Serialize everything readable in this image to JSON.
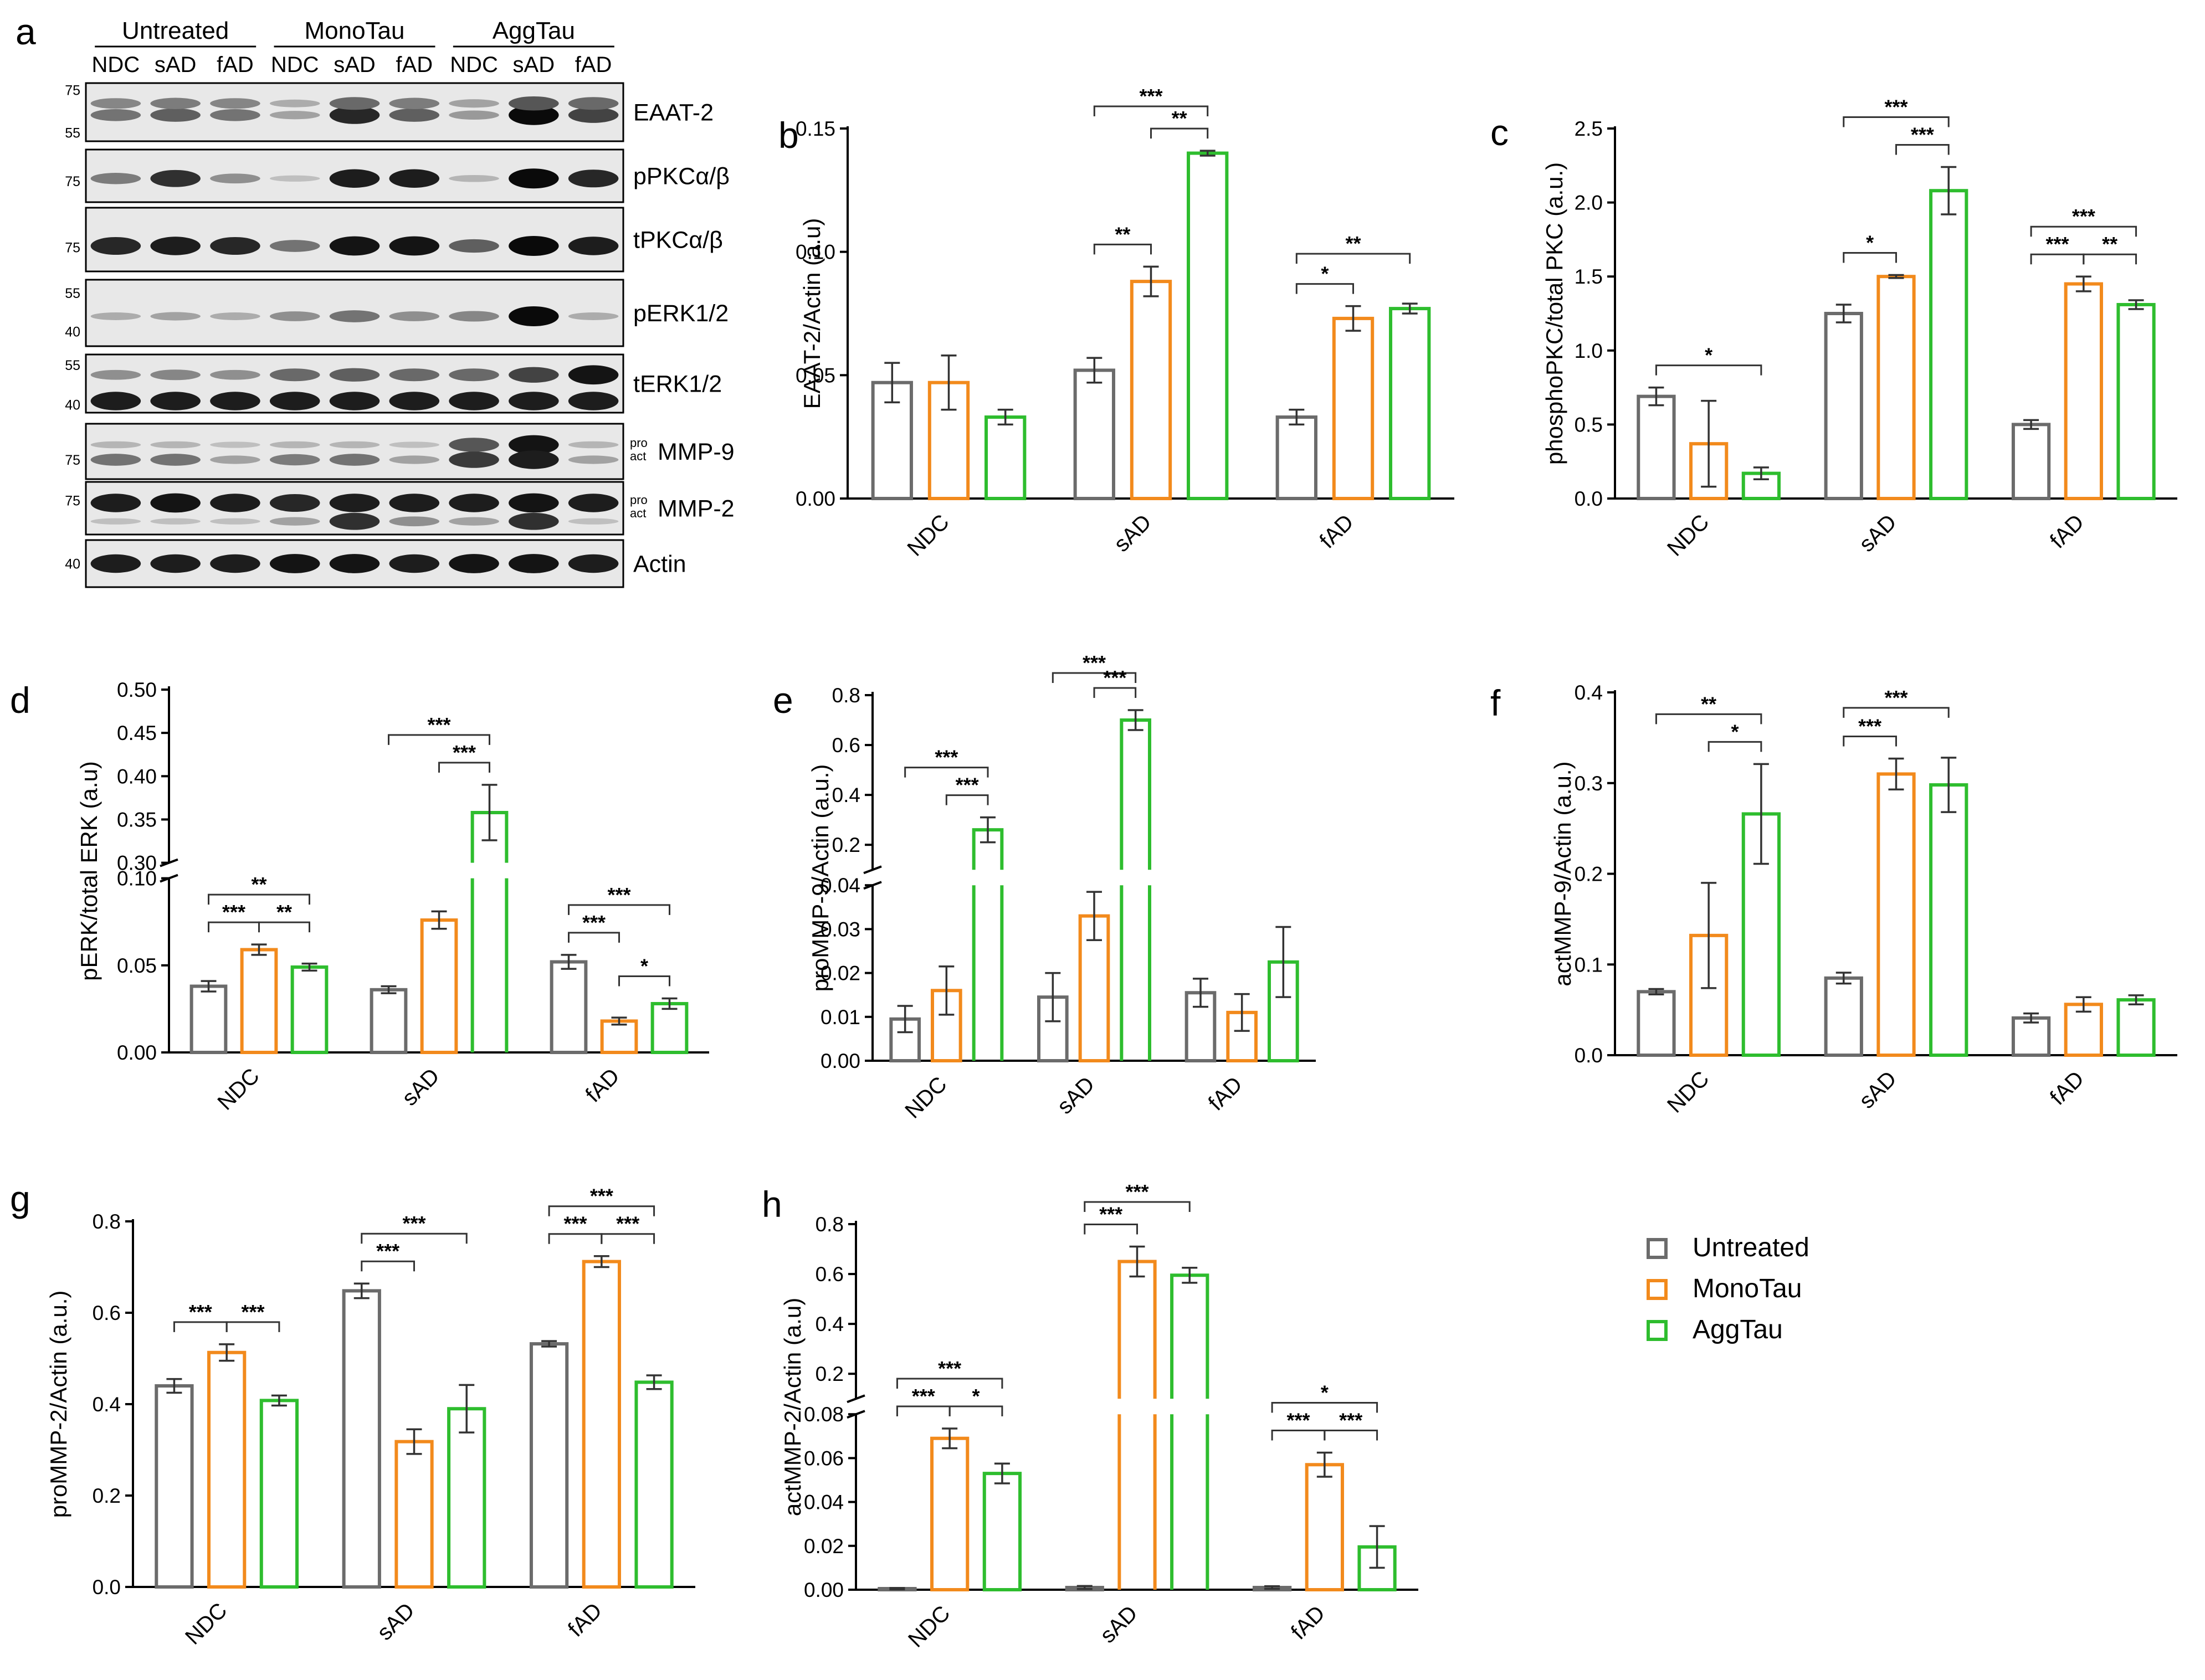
{
  "figure": {
    "groups": [
      "Untreated",
      "MonoTau",
      "AggTau"
    ],
    "group_colors": [
      "#6b6b6b",
      "#f28a1c",
      "#2ebd2e"
    ],
    "legend": [
      "Untreated",
      "MonoTau",
      "AggTau"
    ]
  },
  "blot": {
    "panel_label": "a",
    "treatment_headers": [
      "Untreated",
      "MonoTau",
      "AggTau"
    ],
    "lane_labels": [
      "NDC",
      "sAD",
      "fAD",
      "NDC",
      "sAD",
      "fAD",
      "NDC",
      "sAD",
      "fAD"
    ],
    "rows": [
      {
        "name": "EAAT-2",
        "markers": [
          "75",
          "55"
        ],
        "tags": []
      },
      {
        "name": "pPKCα/β",
        "markers": [
          "75"
        ],
        "tags": []
      },
      {
        "name": "tPKCα/β",
        "markers": [
          "75"
        ],
        "tags": []
      },
      {
        "name": "pERK1/2",
        "markers": [
          "55",
          "40"
        ],
        "tags": []
      },
      {
        "name": "tERK1/2",
        "markers": [
          "55",
          "40"
        ],
        "tags": []
      },
      {
        "name": "MMP-9",
        "markers": [
          "75"
        ],
        "tags": [
          "pro",
          "act"
        ]
      },
      {
        "name": "MMP-2",
        "markers": [
          "75"
        ],
        "tags": [
          "pro",
          "act"
        ]
      },
      {
        "name": "Actin",
        "markers": [
          "40"
        ],
        "tags": []
      }
    ]
  },
  "chart_data": [
    {
      "panel": "b",
      "type": "bar",
      "ylabel": "EAAT-2/Actin (a.u)",
      "categories": [
        "NDC",
        "sAD",
        "fAD"
      ],
      "ylim": [
        0,
        0.15
      ],
      "ticks": [
        "0.00",
        "0.05",
        "0.10",
        "0.15"
      ],
      "tick_values": [
        0,
        0.05,
        0.1,
        0.15
      ],
      "series": [
        {
          "name": "Untreated",
          "values": [
            0.047,
            0.052,
            0.033
          ],
          "errors": [
            0.008,
            0.005,
            0.003
          ]
        },
        {
          "name": "MonoTau",
          "values": [
            0.047,
            0.088,
            0.073
          ],
          "errors": [
            0.011,
            0.006,
            0.005
          ]
        },
        {
          "name": "AggTau",
          "values": [
            0.033,
            0.14,
            0.077
          ],
          "errors": [
            0.003,
            0.001,
            0.002
          ]
        }
      ],
      "significance": [
        {
          "cat": 1,
          "a": 0,
          "b": 2,
          "label": "***",
          "level": 2
        },
        {
          "cat": 1,
          "a": 0,
          "b": 1,
          "label": "**",
          "level": 1
        },
        {
          "cat": 1,
          "a": 1,
          "b": 2,
          "label": "**",
          "level": 1
        },
        {
          "cat": 2,
          "a": 0,
          "b": 2,
          "label": "**",
          "level": 2
        },
        {
          "cat": 2,
          "a": 0,
          "b": 1,
          "label": "*",
          "level": 1
        }
      ]
    },
    {
      "panel": "c",
      "type": "bar",
      "ylabel": "phosphoPKC/total PKC (a.u.)",
      "categories": [
        "NDC",
        "sAD",
        "fAD"
      ],
      "ylim": [
        0,
        2.5
      ],
      "ticks": [
        "0.0",
        "0.5",
        "1.0",
        "1.5",
        "2.0",
        "2.5"
      ],
      "tick_values": [
        0,
        0.5,
        1.0,
        1.5,
        2.0,
        2.5
      ],
      "series": [
        {
          "name": "Untreated",
          "values": [
            0.69,
            1.25,
            0.5
          ],
          "errors": [
            0.06,
            0.06,
            0.03
          ]
        },
        {
          "name": "MonoTau",
          "values": [
            0.37,
            1.5,
            1.45
          ],
          "errors": [
            0.29,
            0.01,
            0.05
          ]
        },
        {
          "name": "AggTau",
          "values": [
            0.17,
            2.08,
            1.31
          ],
          "errors": [
            0.04,
            0.16,
            0.03
          ]
        }
      ],
      "significance": [
        {
          "cat": 0,
          "a": 0,
          "b": 2,
          "label": "*",
          "level": 1
        },
        {
          "cat": 1,
          "a": 0,
          "b": 2,
          "label": "***",
          "level": 2
        },
        {
          "cat": 1,
          "a": 0,
          "b": 1,
          "label": "*",
          "level": 1
        },
        {
          "cat": 1,
          "a": 1,
          "b": 2,
          "label": "***",
          "level": 1
        },
        {
          "cat": 2,
          "a": 0,
          "b": 2,
          "label": "***",
          "level": 2
        },
        {
          "cat": 2,
          "a": 0,
          "b": 1,
          "label": "***",
          "level": 1
        },
        {
          "cat": 2,
          "a": 1,
          "b": 2,
          "label": "**",
          "level": 1
        }
      ]
    },
    {
      "panel": "d",
      "type": "bar",
      "ylabel": "pERK/total ERK (a.u)",
      "categories": [
        "NDC",
        "sAD",
        "fAD"
      ],
      "broken_axis": {
        "lower": [
          0,
          0.1
        ],
        "upper": [
          0.3,
          0.5
        ]
      },
      "ticks": [
        "0.00",
        "0.05",
        "0.10",
        "0.30",
        "0.35",
        "0.40",
        "0.45",
        "0.50"
      ],
      "tick_values": [
        0,
        0.05,
        0.1,
        0.3,
        0.35,
        0.4,
        0.45,
        0.5
      ],
      "series": [
        {
          "name": "Untreated",
          "values": [
            0.038,
            0.036,
            0.052
          ],
          "errors": [
            0.003,
            0.002,
            0.004
          ]
        },
        {
          "name": "MonoTau",
          "values": [
            0.059,
            0.076,
            0.018
          ],
          "errors": [
            0.003,
            0.005,
            0.002
          ]
        },
        {
          "name": "AggTau",
          "values": [
            0.049,
            0.358,
            0.028
          ],
          "errors": [
            0.002,
            0.032,
            0.003
          ]
        }
      ],
      "significance": [
        {
          "cat": 0,
          "a": 0,
          "b": 2,
          "label": "**",
          "level": 2
        },
        {
          "cat": 0,
          "a": 0,
          "b": 1,
          "label": "***",
          "level": 1
        },
        {
          "cat": 0,
          "a": 1,
          "b": 2,
          "label": "**",
          "level": 1
        },
        {
          "cat": 1,
          "a": 0,
          "b": 2,
          "label": "***",
          "level": 2
        },
        {
          "cat": 1,
          "a": 1,
          "b": 2,
          "label": "***",
          "level": 1
        },
        {
          "cat": 2,
          "a": 0,
          "b": 2,
          "label": "***",
          "level": 2
        },
        {
          "cat": 2,
          "a": 0,
          "b": 1,
          "label": "***",
          "level": 1
        },
        {
          "cat": 2,
          "a": 1,
          "b": 2,
          "label": "*",
          "level": 1
        }
      ]
    },
    {
      "panel": "e",
      "type": "bar",
      "ylabel": "proMMP-9/Actin (a.u.)",
      "categories": [
        "NDC",
        "sAD",
        "fAD"
      ],
      "broken_axis": {
        "lower": [
          0,
          0.04
        ],
        "upper": [
          0.1,
          0.8
        ]
      },
      "ticks": [
        "0.00",
        "0.01",
        "0.02",
        "0.03",
        "0.04",
        "0.2",
        "0.4",
        "0.6",
        "0.8"
      ],
      "tick_values": [
        0,
        0.01,
        0.02,
        0.03,
        0.04,
        0.2,
        0.4,
        0.6,
        0.8
      ],
      "series": [
        {
          "name": "Untreated",
          "values": [
            0.0095,
            0.0145,
            0.0155
          ],
          "errors": [
            0.003,
            0.0055,
            0.0032
          ]
        },
        {
          "name": "MonoTau",
          "values": [
            0.016,
            0.033,
            0.011
          ],
          "errors": [
            0.0055,
            0.0055,
            0.0042
          ]
        },
        {
          "name": "AggTau",
          "values": [
            0.26,
            0.7,
            0.0225
          ],
          "errors": [
            0.05,
            0.04,
            0.008
          ]
        }
      ],
      "significance": [
        {
          "cat": 0,
          "a": 0,
          "b": 2,
          "label": "***",
          "level": 2
        },
        {
          "cat": 0,
          "a": 1,
          "b": 2,
          "label": "***",
          "level": 1
        },
        {
          "cat": 1,
          "a": 0,
          "b": 2,
          "label": "***",
          "level": 2
        },
        {
          "cat": 1,
          "a": 1,
          "b": 2,
          "label": "***",
          "level": 1
        }
      ]
    },
    {
      "panel": "f",
      "type": "bar",
      "ylabel": "actMMP-9/Actin (a.u.)",
      "categories": [
        "NDC",
        "sAD",
        "fAD"
      ],
      "ylim": [
        0,
        0.4
      ],
      "ticks": [
        "0.0",
        "0.1",
        "0.2",
        "0.3",
        "0.4"
      ],
      "tick_values": [
        0,
        0.1,
        0.2,
        0.3,
        0.4
      ],
      "series": [
        {
          "name": "Untreated",
          "values": [
            0.07,
            0.085,
            0.041
          ],
          "errors": [
            0.003,
            0.006,
            0.005
          ]
        },
        {
          "name": "MonoTau",
          "values": [
            0.132,
            0.31,
            0.056
          ],
          "errors": [
            0.058,
            0.017,
            0.008
          ]
        },
        {
          "name": "AggTau",
          "values": [
            0.266,
            0.298,
            0.061
          ],
          "errors": [
            0.055,
            0.03,
            0.005
          ]
        }
      ],
      "significance": [
        {
          "cat": 0,
          "a": 0,
          "b": 2,
          "label": "**",
          "level": 2
        },
        {
          "cat": 0,
          "a": 1,
          "b": 2,
          "label": "*",
          "level": 1
        },
        {
          "cat": 1,
          "a": 0,
          "b": 2,
          "label": "***",
          "level": 2
        },
        {
          "cat": 1,
          "a": 0,
          "b": 1,
          "label": "***",
          "level": 1
        }
      ]
    },
    {
      "panel": "g",
      "type": "bar",
      "ylabel": "proMMP-2/Actin (a.u.)",
      "categories": [
        "NDC",
        "sAD",
        "fAD"
      ],
      "ylim": [
        0,
        0.8
      ],
      "ticks": [
        "0.0",
        "0.2",
        "0.4",
        "0.6",
        "0.8"
      ],
      "tick_values": [
        0,
        0.2,
        0.4,
        0.6,
        0.8
      ],
      "series": [
        {
          "name": "Untreated",
          "values": [
            0.44,
            0.648,
            0.532
          ],
          "errors": [
            0.015,
            0.016,
            0.006
          ]
        },
        {
          "name": "MonoTau",
          "values": [
            0.513,
            0.318,
            0.712
          ],
          "errors": [
            0.018,
            0.027,
            0.012
          ]
        },
        {
          "name": "AggTau",
          "values": [
            0.408,
            0.39,
            0.448
          ],
          "errors": [
            0.011,
            0.052,
            0.015
          ]
        }
      ],
      "significance": [
        {
          "cat": 0,
          "a": 0,
          "b": 1,
          "label": "***",
          "level": 1
        },
        {
          "cat": 0,
          "a": 1,
          "b": 2,
          "label": "***",
          "level": 1
        },
        {
          "cat": 1,
          "a": 0,
          "b": 2,
          "label": "***",
          "level": 2
        },
        {
          "cat": 1,
          "a": 0,
          "b": 1,
          "label": "***",
          "level": 1
        },
        {
          "cat": 2,
          "a": 0,
          "b": 2,
          "label": "***",
          "level": 2
        },
        {
          "cat": 2,
          "a": 0,
          "b": 1,
          "label": "***",
          "level": 1
        },
        {
          "cat": 2,
          "a": 1,
          "b": 2,
          "label": "***",
          "level": 1
        }
      ]
    },
    {
      "panel": "h",
      "type": "bar",
      "ylabel": "actMMP-2/Actin (a.u)",
      "categories": [
        "NDC",
        "sAD",
        "fAD"
      ],
      "broken_axis": {
        "lower": [
          0,
          0.08
        ],
        "upper": [
          0.1,
          0.8
        ]
      },
      "ticks": [
        "0.00",
        "0.02",
        "0.04",
        "0.06",
        "0.08",
        "0.2",
        "0.4",
        "0.6",
        "0.8"
      ],
      "tick_values": [
        0,
        0.02,
        0.04,
        0.06,
        0.08,
        0.2,
        0.4,
        0.6,
        0.8
      ],
      "series": [
        {
          "name": "Untreated",
          "values": [
            0.0005,
            0.001,
            0.001
          ],
          "errors": [
            0.0003,
            0.0007,
            0.0006
          ]
        },
        {
          "name": "MonoTau",
          "values": [
            0.069,
            0.65,
            0.057
          ],
          "errors": [
            0.0045,
            0.06,
            0.0055
          ]
        },
        {
          "name": "AggTau",
          "values": [
            0.053,
            0.595,
            0.0195
          ],
          "errors": [
            0.0045,
            0.03,
            0.0095
          ]
        }
      ],
      "significance": [
        {
          "cat": 0,
          "a": 0,
          "b": 2,
          "label": "***",
          "level": 2
        },
        {
          "cat": 0,
          "a": 0,
          "b": 1,
          "label": "***",
          "level": 1
        },
        {
          "cat": 0,
          "a": 1,
          "b": 2,
          "label": "*",
          "level": 1
        },
        {
          "cat": 1,
          "a": 0,
          "b": 2,
          "label": "***",
          "level": 2
        },
        {
          "cat": 1,
          "a": 0,
          "b": 1,
          "label": "***",
          "level": 1
        },
        {
          "cat": 2,
          "a": 0,
          "b": 2,
          "label": "*",
          "level": 2
        },
        {
          "cat": 2,
          "a": 0,
          "b": 1,
          "label": "***",
          "level": 1
        },
        {
          "cat": 2,
          "a": 1,
          "b": 2,
          "label": "***",
          "level": 1
        }
      ]
    }
  ]
}
